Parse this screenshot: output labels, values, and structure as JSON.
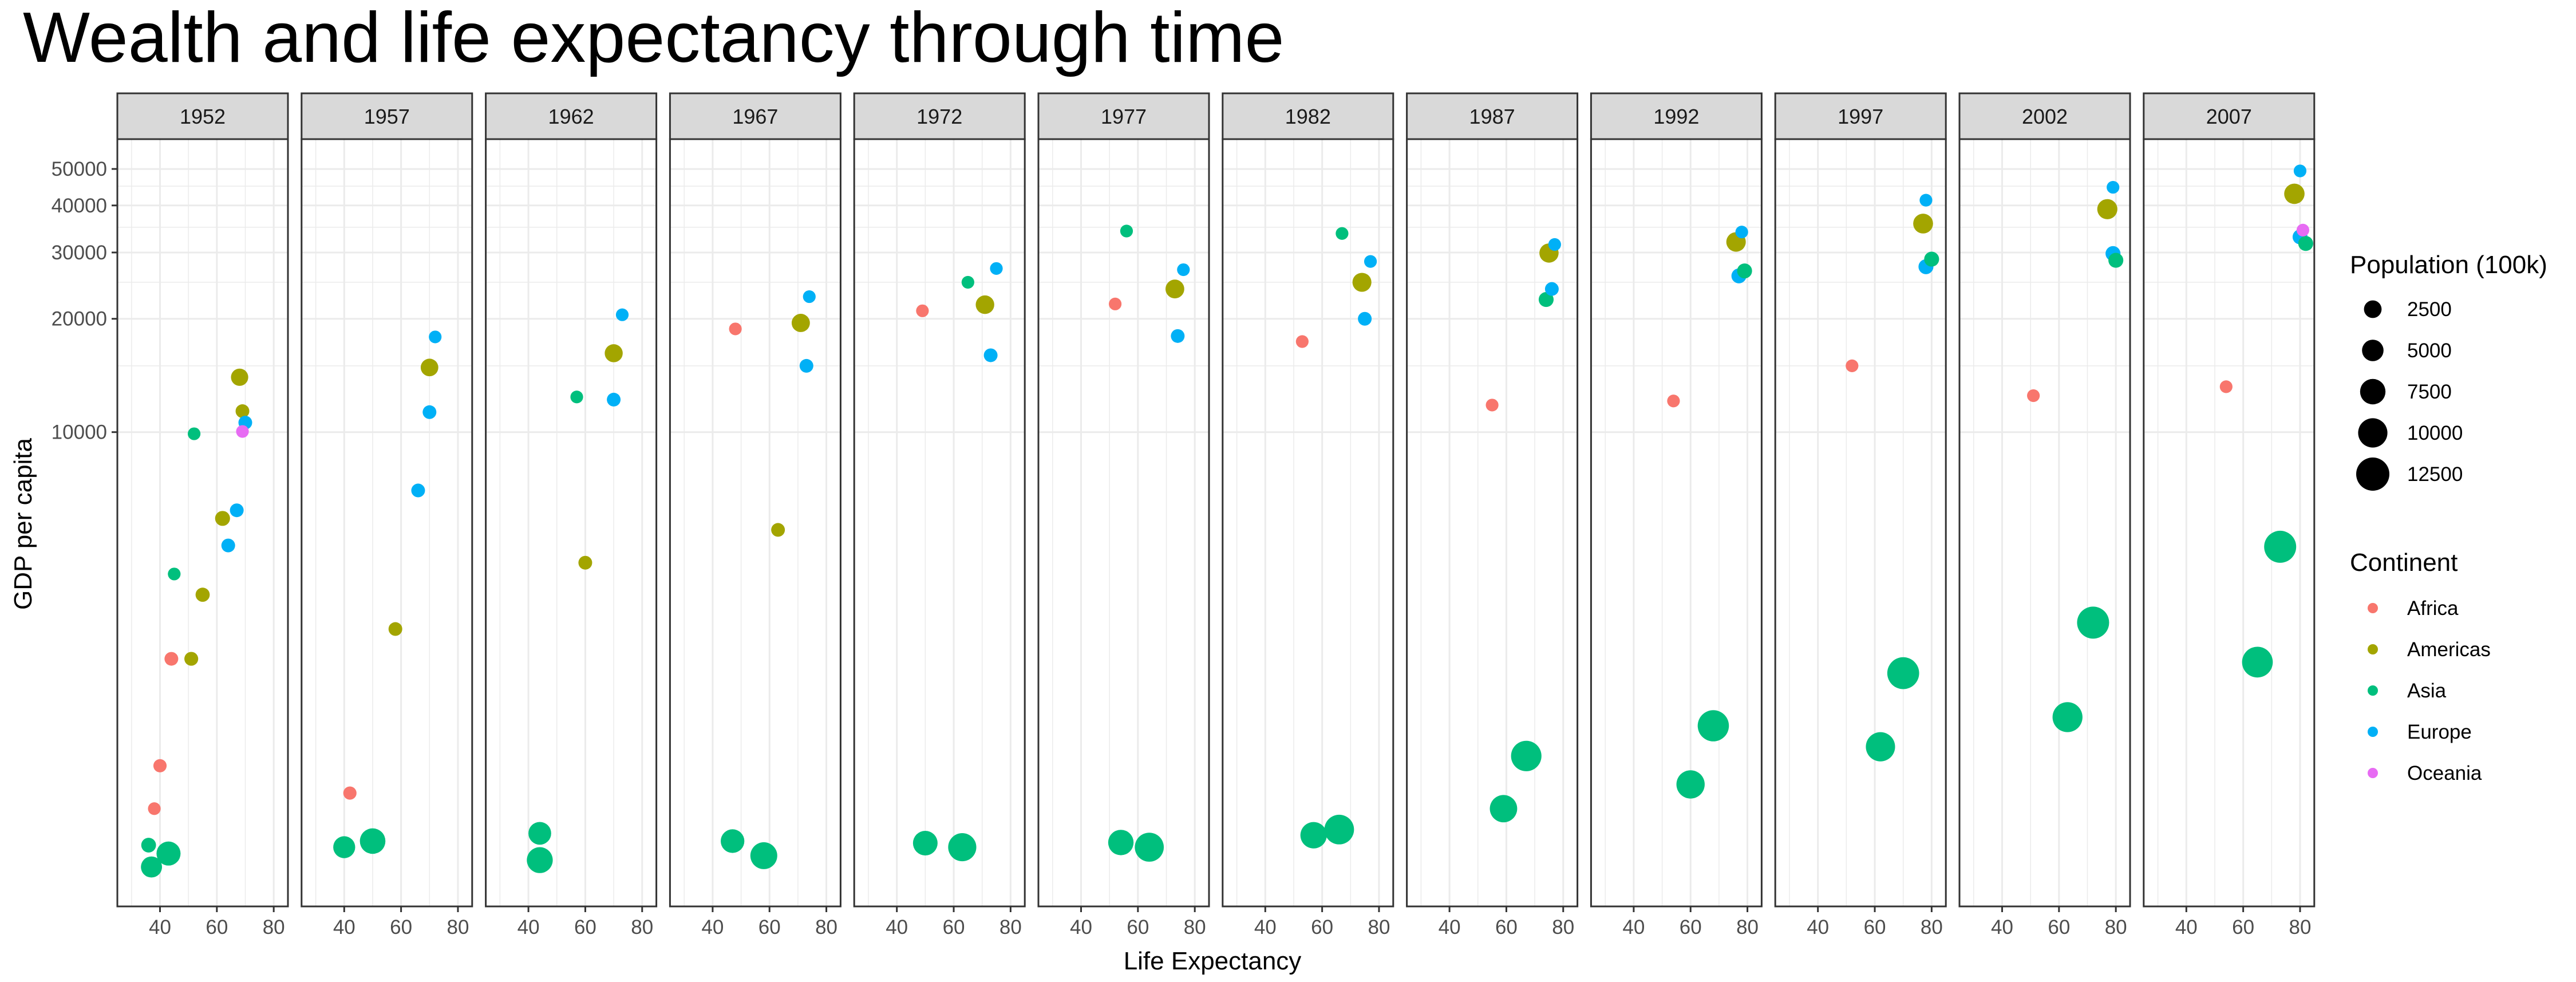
{
  "chart_data": {
    "type": "scatter",
    "title": "Wealth and life expectancy through time",
    "xlabel": "Life Expectancy",
    "ylabel": "GDP per capita",
    "y_scale": "log",
    "xlim": [
      25,
      85
    ],
    "ylim": [
      550,
      60000
    ],
    "x_ticks": [
      "40",
      "60",
      "80"
    ],
    "y_ticks": [
      "10000",
      "20000",
      "30000",
      "40000",
      "50000"
    ],
    "grid": true,
    "legend_position": "right",
    "colors": {
      "Africa": "#F8766D",
      "Americas": "#A3A500",
      "Asia": "#00BF7D",
      "Europe": "#00B0F6",
      "Oceania": "#E76BF3",
      "strip_fill": "#d9d9d9",
      "grid": "#ebebeb",
      "panel_border": "#333333"
    },
    "size_legend": {
      "title": "Population (100k)",
      "values": [
        2500,
        5000,
        7500,
        10000,
        12500
      ]
    },
    "color_legend": {
      "title": "Continent",
      "entries": [
        "Africa",
        "Americas",
        "Asia",
        "Europe",
        "Oceania"
      ]
    },
    "facets": [
      {
        "year": "1952",
        "points": [
          {
            "c": "Asia",
            "x": 43,
            "y": 760,
            "pop": 5300
          },
          {
            "c": "Asia",
            "x": 37,
            "y": 700,
            "pop": 3400
          },
          {
            "c": "Asia",
            "x": 36,
            "y": 800,
            "pop": 750
          },
          {
            "c": "Africa",
            "x": 38,
            "y": 1000,
            "pop": 300
          },
          {
            "c": "Africa",
            "x": 40,
            "y": 1300,
            "pop": 400
          },
          {
            "c": "Africa",
            "x": 44,
            "y": 2500,
            "pop": 500
          },
          {
            "c": "Americas",
            "x": 51,
            "y": 2500,
            "pop": 520
          },
          {
            "c": "Americas",
            "x": 55,
            "y": 3700,
            "pop": 600
          },
          {
            "c": "Americas",
            "x": 62,
            "y": 5900,
            "pop": 800
          },
          {
            "c": "Americas",
            "x": 68,
            "y": 13990,
            "pop": 1570
          },
          {
            "c": "Americas",
            "x": 69,
            "y": 11370,
            "pop": 500
          },
          {
            "c": "Europe",
            "x": 70,
            "y": 10600,
            "pop": 500
          },
          {
            "c": "Europe",
            "x": 67,
            "y": 6200,
            "pop": 500
          },
          {
            "c": "Europe",
            "x": 64,
            "y": 5000,
            "pop": 500
          },
          {
            "c": "Asia",
            "x": 52,
            "y": 9900,
            "pop": 300
          },
          {
            "c": "Asia",
            "x": 45,
            "y": 4200,
            "pop": 300
          },
          {
            "c": "Oceania",
            "x": 69,
            "y": 10040,
            "pop": 300
          }
        ]
      },
      {
        "year": "1957",
        "points": [
          {
            "c": "Asia",
            "x": 50,
            "y": 820,
            "pop": 6400
          },
          {
            "c": "Asia",
            "x": 40,
            "y": 790,
            "pop": 3900
          },
          {
            "c": "Africa",
            "x": 42,
            "y": 1100,
            "pop": 400
          },
          {
            "c": "Americas",
            "x": 70,
            "y": 14850,
            "pop": 1700
          },
          {
            "c": "Europe",
            "x": 70,
            "y": 11300,
            "pop": 500
          },
          {
            "c": "Europe",
            "x": 72,
            "y": 17900,
            "pop": 300
          },
          {
            "c": "Americas",
            "x": 58,
            "y": 3000,
            "pop": 500
          },
          {
            "c": "Europe",
            "x": 66,
            "y": 7000,
            "pop": 500
          }
        ]
      },
      {
        "year": "1962",
        "points": [
          {
            "c": "Asia",
            "x": 44,
            "y": 730,
            "pop": 6700
          },
          {
            "c": "Asia",
            "x": 44,
            "y": 860,
            "pop": 4400
          },
          {
            "c": "Americas",
            "x": 70,
            "y": 16200,
            "pop": 1870
          },
          {
            "c": "Europe",
            "x": 73,
            "y": 20500,
            "pop": 300
          },
          {
            "c": "Europe",
            "x": 70,
            "y": 12200,
            "pop": 500
          },
          {
            "c": "Asia",
            "x": 57,
            "y": 12400,
            "pop": 300
          },
          {
            "c": "Americas",
            "x": 60,
            "y": 4500,
            "pop": 500
          }
        ]
      },
      {
        "year": "1967",
        "points": [
          {
            "c": "Asia",
            "x": 58,
            "y": 750,
            "pop": 7500
          },
          {
            "c": "Asia",
            "x": 47,
            "y": 820,
            "pop": 5000
          },
          {
            "c": "Americas",
            "x": 71,
            "y": 19500,
            "pop": 1980
          },
          {
            "c": "Europe",
            "x": 74,
            "y": 22900,
            "pop": 300
          },
          {
            "c": "Europe",
            "x": 73,
            "y": 15000,
            "pop": 500
          },
          {
            "c": "Africa",
            "x": 48,
            "y": 18800,
            "pop": 300
          },
          {
            "c": "Americas",
            "x": 63,
            "y": 5500,
            "pop": 500
          }
        ]
      },
      {
        "year": "1972",
        "points": [
          {
            "c": "Asia",
            "x": 63,
            "y": 790,
            "pop": 8600
          },
          {
            "c": "Asia",
            "x": 50,
            "y": 810,
            "pop": 5700
          },
          {
            "c": "Americas",
            "x": 71,
            "y": 21800,
            "pop": 2100
          },
          {
            "c": "Europe",
            "x": 75,
            "y": 27200,
            "pop": 300
          },
          {
            "c": "Asia",
            "x": 65,
            "y": 25000,
            "pop": 300
          },
          {
            "c": "Africa",
            "x": 49,
            "y": 21000,
            "pop": 300
          },
          {
            "c": "Europe",
            "x": 73,
            "y": 16000,
            "pop": 500
          }
        ]
      },
      {
        "year": "1977",
        "points": [
          {
            "c": "Asia",
            "x": 64,
            "y": 790,
            "pop": 9400
          },
          {
            "c": "Asia",
            "x": 54,
            "y": 813,
            "pop": 6300
          },
          {
            "c": "Americas",
            "x": 73,
            "y": 24000,
            "pop": 2200
          },
          {
            "c": "Asia",
            "x": 56,
            "y": 34200,
            "pop": 300
          },
          {
            "c": "Europe",
            "x": 76,
            "y": 27000,
            "pop": 300
          },
          {
            "c": "Africa",
            "x": 52,
            "y": 21900,
            "pop": 300
          },
          {
            "c": "Europe",
            "x": 74,
            "y": 18000,
            "pop": 500
          }
        ]
      },
      {
        "year": "1982",
        "points": [
          {
            "c": "Asia",
            "x": 66,
            "y": 880,
            "pop": 10000
          },
          {
            "c": "Asia",
            "x": 57,
            "y": 850,
            "pop": 7100
          },
          {
            "c": "Americas",
            "x": 74,
            "y": 25000,
            "pop": 2300
          },
          {
            "c": "Asia",
            "x": 67,
            "y": 33700,
            "pop": 300
          },
          {
            "c": "Europe",
            "x": 77,
            "y": 28400,
            "pop": 300
          },
          {
            "c": "Africa",
            "x": 53,
            "y": 17400,
            "pop": 300
          },
          {
            "c": "Europe",
            "x": 75,
            "y": 20000,
            "pop": 500
          }
        ]
      },
      {
        "year": "1987",
        "points": [
          {
            "c": "Asia",
            "x": 67,
            "y": 1380,
            "pop": 10800
          },
          {
            "c": "Asia",
            "x": 59,
            "y": 1000,
            "pop": 7900
          },
          {
            "c": "Americas",
            "x": 75,
            "y": 29900,
            "pop": 2420
          },
          {
            "c": "Europe",
            "x": 77,
            "y": 31500,
            "pop": 300
          },
          {
            "c": "Europe",
            "x": 76,
            "y": 24000,
            "pop": 500
          },
          {
            "c": "Africa",
            "x": 55,
            "y": 11800,
            "pop": 300
          },
          {
            "c": "Asia",
            "x": 74,
            "y": 22500,
            "pop": 800
          }
        ]
      },
      {
        "year": "1992",
        "points": [
          {
            "c": "Asia",
            "x": 68,
            "y": 1660,
            "pop": 11600
          },
          {
            "c": "Asia",
            "x": 60,
            "y": 1160,
            "pop": 8700
          },
          {
            "c": "Americas",
            "x": 76,
            "y": 32000,
            "pop": 2560
          },
          {
            "c": "Europe",
            "x": 78,
            "y": 34000,
            "pop": 300
          },
          {
            "c": "Europe",
            "x": 77,
            "y": 26000,
            "pop": 800
          },
          {
            "c": "Africa",
            "x": 54,
            "y": 12100,
            "pop": 300
          },
          {
            "c": "Asia",
            "x": 79,
            "y": 26800,
            "pop": 800
          }
        ]
      },
      {
        "year": "1997",
        "points": [
          {
            "c": "Asia",
            "x": 70,
            "y": 2290,
            "pop": 12300
          },
          {
            "c": "Asia",
            "x": 62,
            "y": 1460,
            "pop": 9600
          },
          {
            "c": "Americas",
            "x": 77,
            "y": 35800,
            "pop": 2720
          },
          {
            "c": "Europe",
            "x": 78,
            "y": 41300,
            "pop": 300
          },
          {
            "c": "Europe",
            "x": 78,
            "y": 27500,
            "pop": 800
          },
          {
            "c": "Africa",
            "x": 52,
            "y": 15000,
            "pop": 300
          },
          {
            "c": "Asia",
            "x": 80,
            "y": 28800,
            "pop": 800
          }
        ]
      },
      {
        "year": "2002",
        "points": [
          {
            "c": "Asia",
            "x": 72,
            "y": 3120,
            "pop": 12800
          },
          {
            "c": "Asia",
            "x": 63,
            "y": 1750,
            "pop": 10300
          },
          {
            "c": "Americas",
            "x": 77,
            "y": 39100,
            "pop": 2880
          },
          {
            "c": "Europe",
            "x": 79,
            "y": 44700,
            "pop": 300
          },
          {
            "c": "Europe",
            "x": 79,
            "y": 29800,
            "pop": 800
          },
          {
            "c": "Africa",
            "x": 51,
            "y": 12500,
            "pop": 300
          },
          {
            "c": "Asia",
            "x": 80,
            "y": 28600,
            "pop": 800
          }
        ]
      },
      {
        "year": "2007",
        "points": [
          {
            "c": "Asia",
            "x": 73,
            "y": 4960,
            "pop": 13200
          },
          {
            "c": "Asia",
            "x": 65,
            "y": 2450,
            "pop": 11100
          },
          {
            "c": "Americas",
            "x": 78,
            "y": 42950,
            "pop": 3010
          },
          {
            "c": "Europe",
            "x": 80,
            "y": 49400,
            "pop": 300
          },
          {
            "c": "Europe",
            "x": 80,
            "y": 33000,
            "pop": 800
          },
          {
            "c": "Africa",
            "x": 54,
            "y": 13200,
            "pop": 300
          },
          {
            "c": "Asia",
            "x": 82,
            "y": 31700,
            "pop": 800
          },
          {
            "c": "Oceania",
            "x": 81,
            "y": 34400,
            "pop": 300
          }
        ]
      }
    ]
  }
}
